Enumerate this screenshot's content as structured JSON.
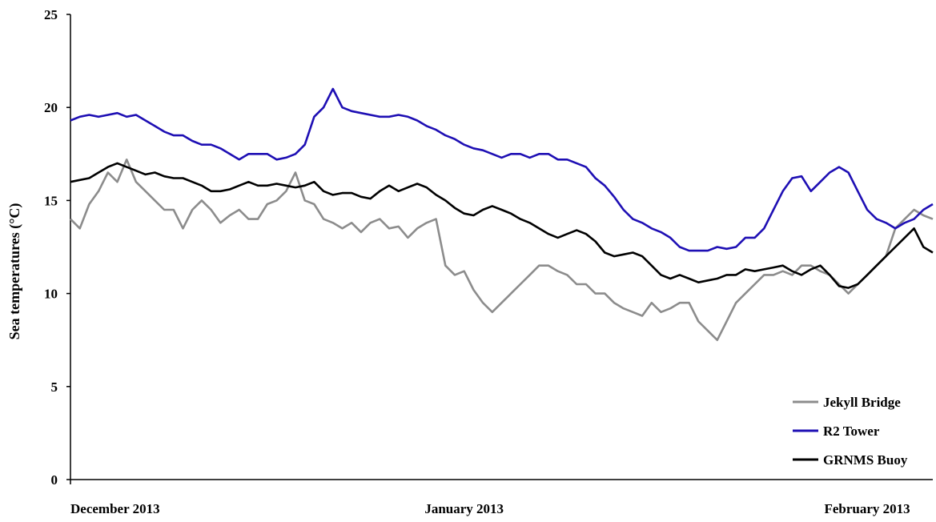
{
  "chart_data": {
    "type": "line",
    "title": "",
    "xlabel": "",
    "ylabel": "Sea temperatures (°C)",
    "ylim": [
      0,
      25
    ],
    "yticks": [
      0,
      5,
      10,
      15,
      20,
      25
    ],
    "xlim": [
      0,
      92
    ],
    "x_tick_labels": [
      {
        "label": "December 2013",
        "x": 0
      },
      {
        "label": "January 2013",
        "x": 42
      },
      {
        "label": "February 2013",
        "x": 85
      }
    ],
    "grid": false,
    "legend_position": "bottom-right",
    "series": [
      {
        "name": "Jekyll Bridge",
        "color": "#8c8c8c",
        "points": [
          [
            0,
            14
          ],
          [
            1,
            13.5
          ],
          [
            2,
            14.8
          ],
          [
            3,
            15.5
          ],
          [
            4,
            16.5
          ],
          [
            5,
            16
          ],
          [
            6,
            17.2
          ],
          [
            7,
            16
          ],
          [
            8,
            15.5
          ],
          [
            9,
            15
          ],
          [
            10,
            14.5
          ],
          [
            11,
            14.5
          ],
          [
            12,
            13.5
          ],
          [
            13,
            14.5
          ],
          [
            14,
            15
          ],
          [
            15,
            14.5
          ],
          [
            16,
            13.8
          ],
          [
            17,
            14.2
          ],
          [
            18,
            14.5
          ],
          [
            19,
            14
          ],
          [
            20,
            14
          ],
          [
            21,
            14.8
          ],
          [
            22,
            15
          ],
          [
            23,
            15.5
          ],
          [
            24,
            16.5
          ],
          [
            25,
            15
          ],
          [
            26,
            14.8
          ],
          [
            27,
            14
          ],
          [
            28,
            13.8
          ],
          [
            29,
            13.5
          ],
          [
            30,
            13.8
          ],
          [
            31,
            13.3
          ],
          [
            32,
            13.8
          ],
          [
            33,
            14
          ],
          [
            34,
            13.5
          ],
          [
            35,
            13.6
          ],
          [
            36,
            13
          ],
          [
            37,
            13.5
          ],
          [
            38,
            13.8
          ],
          [
            39,
            14
          ],
          [
            40,
            11.5
          ],
          [
            41,
            11
          ],
          [
            42,
            11.2
          ],
          [
            43,
            10.2
          ],
          [
            44,
            9.5
          ],
          [
            45,
            9
          ],
          [
            46,
            9.5
          ],
          [
            47,
            10
          ],
          [
            48,
            10.5
          ],
          [
            49,
            11
          ],
          [
            50,
            11.5
          ],
          [
            51,
            11.5
          ],
          [
            52,
            11.2
          ],
          [
            53,
            11
          ],
          [
            54,
            10.5
          ],
          [
            55,
            10.5
          ],
          [
            56,
            10
          ],
          [
            57,
            10
          ],
          [
            58,
            9.5
          ],
          [
            59,
            9.2
          ],
          [
            60,
            9
          ],
          [
            61,
            8.8
          ],
          [
            62,
            9.5
          ],
          [
            63,
            9
          ],
          [
            64,
            9.2
          ],
          [
            65,
            9.5
          ],
          [
            66,
            9.5
          ],
          [
            67,
            8.5
          ],
          [
            68,
            8
          ],
          [
            69,
            7.5
          ],
          [
            70,
            8.5
          ],
          [
            71,
            9.5
          ],
          [
            72,
            10
          ],
          [
            73,
            10.5
          ],
          [
            74,
            11
          ],
          [
            75,
            11
          ],
          [
            76,
            11.2
          ],
          [
            77,
            11
          ],
          [
            78,
            11.5
          ],
          [
            79,
            11.5
          ],
          [
            80,
            11.2
          ],
          [
            81,
            11
          ],
          [
            82,
            10.5
          ],
          [
            83,
            10
          ],
          [
            84,
            10.5
          ],
          [
            85,
            11
          ],
          [
            86,
            11.5
          ],
          [
            87,
            12
          ],
          [
            88,
            13.5
          ],
          [
            89,
            14
          ],
          [
            90,
            14.5
          ],
          [
            91,
            14.2
          ],
          [
            92,
            14
          ]
        ]
      },
      {
        "name": "R2 Tower",
        "color": "#1e0fb4",
        "points": [
          [
            0,
            19.3
          ],
          [
            1,
            19.5
          ],
          [
            2,
            19.6
          ],
          [
            3,
            19.5
          ],
          [
            4,
            19.6
          ],
          [
            5,
            19.7
          ],
          [
            6,
            19.5
          ],
          [
            7,
            19.6
          ],
          [
            8,
            19.3
          ],
          [
            9,
            19
          ],
          [
            10,
            18.7
          ],
          [
            11,
            18.5
          ],
          [
            12,
            18.5
          ],
          [
            13,
            18.2
          ],
          [
            14,
            18
          ],
          [
            15,
            18
          ],
          [
            16,
            17.8
          ],
          [
            17,
            17.5
          ],
          [
            18,
            17.2
          ],
          [
            19,
            17.5
          ],
          [
            20,
            17.5
          ],
          [
            21,
            17.5
          ],
          [
            22,
            17.2
          ],
          [
            23,
            17.3
          ],
          [
            24,
            17.5
          ],
          [
            25,
            18
          ],
          [
            26,
            19.5
          ],
          [
            27,
            20
          ],
          [
            28,
            21
          ],
          [
            29,
            20
          ],
          [
            30,
            19.8
          ],
          [
            31,
            19.7
          ],
          [
            32,
            19.6
          ],
          [
            33,
            19.5
          ],
          [
            34,
            19.5
          ],
          [
            35,
            19.6
          ],
          [
            36,
            19.5
          ],
          [
            37,
            19.3
          ],
          [
            38,
            19
          ],
          [
            39,
            18.8
          ],
          [
            40,
            18.5
          ],
          [
            41,
            18.3
          ],
          [
            42,
            18
          ],
          [
            43,
            17.8
          ],
          [
            44,
            17.7
          ],
          [
            45,
            17.5
          ],
          [
            46,
            17.3
          ],
          [
            47,
            17.5
          ],
          [
            48,
            17.5
          ],
          [
            49,
            17.3
          ],
          [
            50,
            17.5
          ],
          [
            51,
            17.5
          ],
          [
            52,
            17.2
          ],
          [
            53,
            17.2
          ],
          [
            54,
            17
          ],
          [
            55,
            16.8
          ],
          [
            56,
            16.2
          ],
          [
            57,
            15.8
          ],
          [
            58,
            15.2
          ],
          [
            59,
            14.5
          ],
          [
            60,
            14
          ],
          [
            61,
            13.8
          ],
          [
            62,
            13.5
          ],
          [
            63,
            13.3
          ],
          [
            64,
            13
          ],
          [
            65,
            12.5
          ],
          [
            66,
            12.3
          ],
          [
            67,
            12.3
          ],
          [
            68,
            12.3
          ],
          [
            69,
            12.5
          ],
          [
            70,
            12.4
          ],
          [
            71,
            12.5
          ],
          [
            72,
            13
          ],
          [
            73,
            13
          ],
          [
            74,
            13.5
          ],
          [
            75,
            14.5
          ],
          [
            76,
            15.5
          ],
          [
            77,
            16.2
          ],
          [
            78,
            16.3
          ],
          [
            79,
            15.5
          ],
          [
            80,
            16
          ],
          [
            81,
            16.5
          ],
          [
            82,
            16.8
          ],
          [
            83,
            16.5
          ],
          [
            84,
            15.5
          ],
          [
            85,
            14.5
          ],
          [
            86,
            14
          ],
          [
            87,
            13.8
          ],
          [
            88,
            13.5
          ],
          [
            89,
            13.8
          ],
          [
            90,
            14
          ],
          [
            91,
            14.5
          ],
          [
            92,
            14.8
          ]
        ]
      },
      {
        "name": "GRNMS Buoy",
        "color": "#000000",
        "points": [
          [
            0,
            16
          ],
          [
            1,
            16.1
          ],
          [
            2,
            16.2
          ],
          [
            3,
            16.5
          ],
          [
            4,
            16.8
          ],
          [
            5,
            17
          ],
          [
            6,
            16.8
          ],
          [
            7,
            16.6
          ],
          [
            8,
            16.4
          ],
          [
            9,
            16.5
          ],
          [
            10,
            16.3
          ],
          [
            11,
            16.2
          ],
          [
            12,
            16.2
          ],
          [
            13,
            16
          ],
          [
            14,
            15.8
          ],
          [
            15,
            15.5
          ],
          [
            16,
            15.5
          ],
          [
            17,
            15.6
          ],
          [
            18,
            15.8
          ],
          [
            19,
            16
          ],
          [
            20,
            15.8
          ],
          [
            21,
            15.8
          ],
          [
            22,
            15.9
          ],
          [
            23,
            15.8
          ],
          [
            24,
            15.7
          ],
          [
            25,
            15.8
          ],
          [
            26,
            16
          ],
          [
            27,
            15.5
          ],
          [
            28,
            15.3
          ],
          [
            29,
            15.4
          ],
          [
            30,
            15.4
          ],
          [
            31,
            15.2
          ],
          [
            32,
            15.1
          ],
          [
            33,
            15.5
          ],
          [
            34,
            15.8
          ],
          [
            35,
            15.5
          ],
          [
            36,
            15.7
          ],
          [
            37,
            15.9
          ],
          [
            38,
            15.7
          ],
          [
            39,
            15.3
          ],
          [
            40,
            15
          ],
          [
            41,
            14.6
          ],
          [
            42,
            14.3
          ],
          [
            43,
            14.2
          ],
          [
            44,
            14.5
          ],
          [
            45,
            14.7
          ],
          [
            46,
            14.5
          ],
          [
            47,
            14.3
          ],
          [
            48,
            14
          ],
          [
            49,
            13.8
          ],
          [
            50,
            13.5
          ],
          [
            51,
            13.2
          ],
          [
            52,
            13
          ],
          [
            53,
            13.2
          ],
          [
            54,
            13.4
          ],
          [
            55,
            13.2
          ],
          [
            56,
            12.8
          ],
          [
            57,
            12.2
          ],
          [
            58,
            12
          ],
          [
            59,
            12.1
          ],
          [
            60,
            12.2
          ],
          [
            61,
            12
          ],
          [
            62,
            11.5
          ],
          [
            63,
            11
          ],
          [
            64,
            10.8
          ],
          [
            65,
            11
          ],
          [
            66,
            10.8
          ],
          [
            67,
            10.6
          ],
          [
            68,
            10.7
          ],
          [
            69,
            10.8
          ],
          [
            70,
            11
          ],
          [
            71,
            11
          ],
          [
            72,
            11.3
          ],
          [
            73,
            11.2
          ],
          [
            74,
            11.3
          ],
          [
            75,
            11.4
          ],
          [
            76,
            11.5
          ],
          [
            77,
            11.2
          ],
          [
            78,
            11
          ],
          [
            79,
            11.3
          ],
          [
            80,
            11.5
          ],
          [
            81,
            11
          ],
          [
            82,
            10.4
          ],
          [
            83,
            10.3
          ],
          [
            84,
            10.5
          ],
          [
            85,
            11
          ],
          [
            86,
            11.5
          ],
          [
            87,
            12
          ],
          [
            88,
            12.5
          ],
          [
            89,
            13
          ],
          [
            90,
            13.5
          ],
          [
            91,
            12.5
          ],
          [
            92,
            12.2
          ]
        ]
      }
    ]
  }
}
